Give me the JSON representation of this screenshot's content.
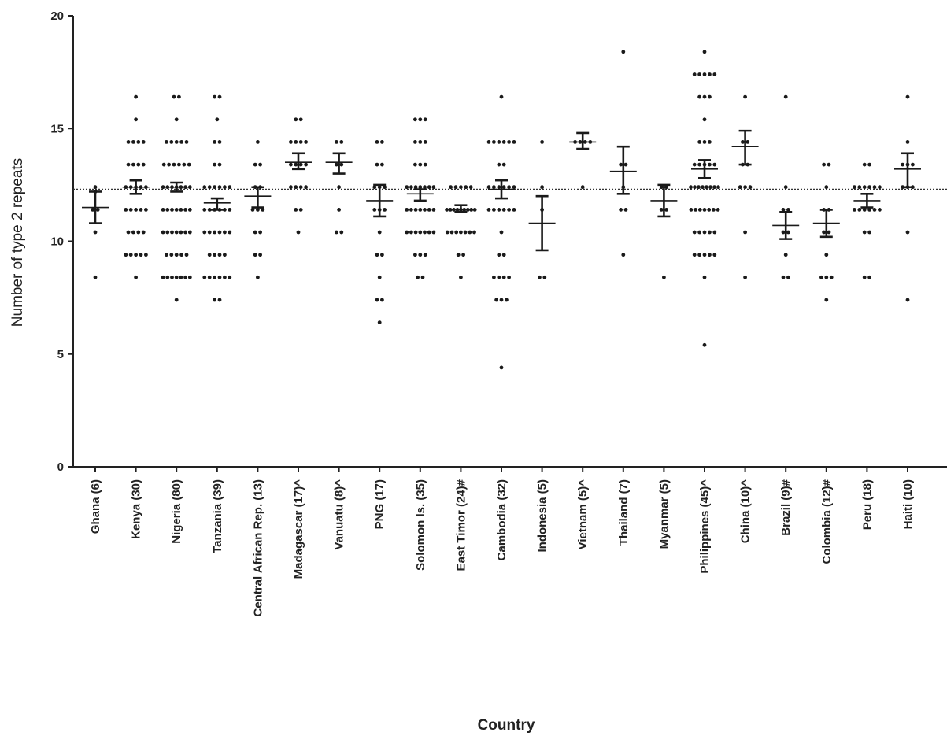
{
  "chart_data": {
    "type": "scatter",
    "title": "",
    "xlabel": "Country",
    "ylabel": "Number of type 2 repeats",
    "ylim": [
      0,
      20
    ],
    "yticks": [
      "0",
      "5",
      "10",
      "15",
      "20"
    ],
    "reference_line": 12.3,
    "grid": false,
    "legend": "none",
    "categories": [
      "Ghana (6)",
      "Kenya (30)",
      "Nigeria (80)",
      "Tanzania (39)",
      "Central African Rep. (13)",
      "Madagascar (17)^",
      "Vanuatu (8)^",
      "PNG (17)",
      "Solomon Is. (35)",
      "East Timor (24)#",
      "Cambodia (32)",
      "Indonesia (5)",
      "Vietnam (5)^",
      "Thailand (7)",
      "Myanmar (5)",
      "Philippines (45)^",
      "China (10)^",
      "Brazil (9)#",
      "Colombia (12)#",
      "Peru (18)",
      "Haiti (10)"
    ],
    "groups": [
      {
        "mean": 11.5,
        "sem_low": 10.8,
        "sem_high": 12.2,
        "points": [
          [
            8.4,
            12.2,
            11.4,
            10.4,
            11.4,
            12.4
          ]
        ]
      },
      {
        "mean": 12.4,
        "sem_low": 12.1,
        "sem_high": 12.7,
        "points": [
          [
            9.4,
            9.4,
            10.4,
            11.4,
            12.4,
            13.4,
            14.4,
            8.4,
            9.4,
            10.4,
            11.4,
            12.4,
            13.4,
            14.4,
            15.4,
            9.4,
            10.4,
            11.4,
            12.4,
            13.4,
            14.4,
            10.4,
            11.4,
            12.4,
            13.4,
            14.4,
            9.4,
            11.4,
            12.4,
            16.4
          ]
        ]
      },
      {
        "mean": 12.4,
        "sem_low": 12.2,
        "sem_high": 12.6,
        "points": [
          [
            8.4,
            9.4,
            10.4,
            11.4,
            12.4,
            13.4,
            14.4,
            8.4,
            9.4,
            10.4,
            11.4,
            12.4,
            13.4,
            14.4,
            16.4,
            7.4,
            8.4,
            9.4,
            10.4,
            11.4,
            12.4,
            13.4,
            14.4,
            15.4,
            16.4,
            8.4,
            9.4,
            10.4,
            11.4,
            12.4,
            13.4,
            14.4,
            8.4,
            9.4,
            10.4,
            11.4,
            12.4,
            13.4,
            8.4,
            10.4,
            11.4,
            12.4,
            13.4,
            14.4,
            8.4,
            10.4,
            11.4,
            12.4
          ]
        ]
      },
      {
        "mean": 11.7,
        "sem_low": 11.4,
        "sem_high": 11.9,
        "points": [
          [
            7.4,
            8.4,
            9.4,
            10.4,
            11.4,
            12.4,
            13.4,
            14.4,
            16.4,
            8.4,
            9.4,
            10.4,
            11.4,
            12.4,
            15.4,
            8.4,
            9.4,
            10.4,
            11.4,
            12.4,
            13.4,
            16.4,
            7.4,
            8.4,
            9.4,
            10.4,
            11.4,
            12.4,
            8.4,
            10.4,
            11.4,
            12.4,
            10.4,
            11.4,
            12.4,
            14.4,
            8.4
          ]
        ]
      },
      {
        "mean": 12.0,
        "sem_low": 11.5,
        "sem_high": 12.4,
        "points": [
          [
            8.4,
            9.4,
            10.4,
            11.4,
            12.4,
            13.4,
            14.4,
            11.4,
            12.4,
            13.4,
            11.4,
            10.4,
            9.4
          ]
        ]
      },
      {
        "mean": 13.5,
        "sem_low": 13.2,
        "sem_high": 13.9,
        "points": [
          [
            10.4,
            11.4,
            12.4,
            13.4,
            14.4,
            15.4,
            12.4,
            13.4,
            14.4,
            15.4,
            13.4,
            14.4,
            11.4,
            12.4,
            13.4,
            14.4,
            12.4
          ]
        ]
      },
      {
        "mean": 13.5,
        "sem_low": 13.0,
        "sem_high": 13.9,
        "points": [
          [
            10.4,
            11.4,
            12.4,
            13.4,
            14.4,
            10.4,
            13.4,
            14.4
          ]
        ]
      },
      {
        "mean": 11.8,
        "sem_low": 11.1,
        "sem_high": 12.5,
        "points": [
          [
            6.4,
            7.4,
            8.4,
            9.4,
            10.4,
            11.4,
            12.4,
            13.4,
            14.4,
            7.4,
            9.4,
            11.4,
            12.4,
            14.4,
            11.4,
            12.4,
            13.4
          ]
        ]
      },
      {
        "mean": 12.1,
        "sem_low": 11.8,
        "sem_high": 12.3,
        "points": [
          [
            8.4,
            9.4,
            10.4,
            11.4,
            12.4,
            13.4,
            14.4,
            15.4,
            10.4,
            11.4,
            12.4,
            13.4,
            9.4,
            10.4,
            11.4,
            12.4,
            14.4,
            15.4,
            10.4,
            11.4,
            12.4,
            9.4,
            10.4,
            11.4,
            12.4,
            8.4,
            10.4,
            11.4,
            12.4,
            15.4,
            11.4,
            12.4,
            13.4,
            14.4,
            10.4
          ]
        ]
      },
      {
        "mean": 11.4,
        "sem_low": 11.3,
        "sem_high": 11.6,
        "points": [
          [
            8.4,
            9.4,
            10.4,
            11.4,
            12.4,
            10.4,
            11.4,
            12.4,
            10.4,
            11.4,
            10.4,
            11.4,
            12.4,
            11.4,
            10.4,
            11.4,
            9.4,
            10.4,
            11.4,
            12.4,
            11.4,
            10.4,
            11.4,
            12.4
          ]
        ]
      },
      {
        "mean": 12.3,
        "sem_low": 11.9,
        "sem_high": 12.7,
        "points": [
          [
            4.4,
            7.4,
            8.4,
            9.4,
            10.4,
            11.4,
            12.4,
            13.4,
            14.4,
            16.4,
            7.4,
            8.4,
            11.4,
            12.4,
            14.4,
            7.4,
            8.4,
            11.4,
            12.4,
            14.4,
            8.4,
            11.4,
            12.4,
            14.4,
            9.4,
            11.4,
            12.4,
            14.4,
            12.4,
            13.4,
            14.4,
            11.4
          ]
        ]
      },
      {
        "mean": 10.8,
        "sem_low": 9.6,
        "sem_high": 12.0,
        "points": [
          [
            8.4,
            11.4,
            12.4,
            14.4,
            8.4
          ]
        ]
      },
      {
        "mean": 14.4,
        "sem_low": 14.1,
        "sem_high": 14.8,
        "points": [
          [
            12.4,
            14.4,
            14.4,
            14.4,
            14.4
          ]
        ]
      },
      {
        "mean": 13.1,
        "sem_low": 12.1,
        "sem_high": 14.2,
        "points": [
          [
            9.4,
            11.4,
            12.4,
            13.4,
            18.4,
            13.4,
            11.4
          ]
        ]
      },
      {
        "mean": 11.8,
        "sem_low": 11.1,
        "sem_high": 12.5,
        "points": [
          [
            8.4,
            11.4,
            12.4,
            12.4,
            11.4
          ]
        ]
      },
      {
        "mean": 13.2,
        "sem_low": 12.8,
        "sem_high": 13.6,
        "points": [
          [
            5.4,
            9.4,
            10.4,
            11.4,
            12.4,
            13.4,
            14.4,
            16.4,
            17.4,
            18.4,
            9.4,
            10.4,
            11.4,
            12.4,
            13.4,
            17.4,
            8.4,
            10.4,
            11.4,
            12.4,
            13.4,
            17.4,
            9.4,
            11.4,
            12.4,
            15.4,
            16.4,
            17.4,
            10.4,
            11.4,
            12.4,
            13.4,
            14.4,
            17.4,
            11.4,
            12.4,
            13.4,
            9.4,
            10.4,
            11.4,
            12.4,
            14.4,
            16.4,
            12.4,
            9.4
          ]
        ]
      },
      {
        "mean": 14.2,
        "sem_low": 13.4,
        "sem_high": 14.9,
        "points": [
          [
            10.4,
            12.4,
            13.4,
            14.4,
            16.4,
            8.4,
            12.4,
            13.4,
            14.4,
            12.4
          ]
        ]
      },
      {
        "mean": 10.7,
        "sem_low": 10.1,
        "sem_high": 11.3,
        "points": [
          [
            8.4,
            9.4,
            10.4,
            11.4,
            12.4,
            16.4,
            8.4,
            11.4,
            10.4
          ]
        ]
      },
      {
        "mean": 10.8,
        "sem_low": 10.2,
        "sem_high": 11.4,
        "points": [
          [
            7.4,
            8.4,
            9.4,
            10.4,
            11.4,
            13.4,
            8.4,
            11.4,
            12.4,
            13.4,
            10.4,
            8.4
          ]
        ]
      },
      {
        "mean": 11.8,
        "sem_low": 11.5,
        "sem_high": 12.1,
        "points": [
          [
            8.4,
            10.4,
            11.4,
            12.4,
            11.4,
            12.4,
            11.4,
            12.4,
            13.4,
            10.4,
            11.4,
            12.4,
            8.4,
            11.4,
            12.4,
            11.4,
            12.4,
            13.4
          ]
        ]
      },
      {
        "mean": 13.2,
        "sem_low": 12.4,
        "sem_high": 13.9,
        "points": [
          [
            7.4,
            10.4,
            12.4,
            13.4,
            14.4,
            16.4,
            12.4,
            13.4,
            12.4,
            13.4
          ]
        ]
      }
    ]
  }
}
